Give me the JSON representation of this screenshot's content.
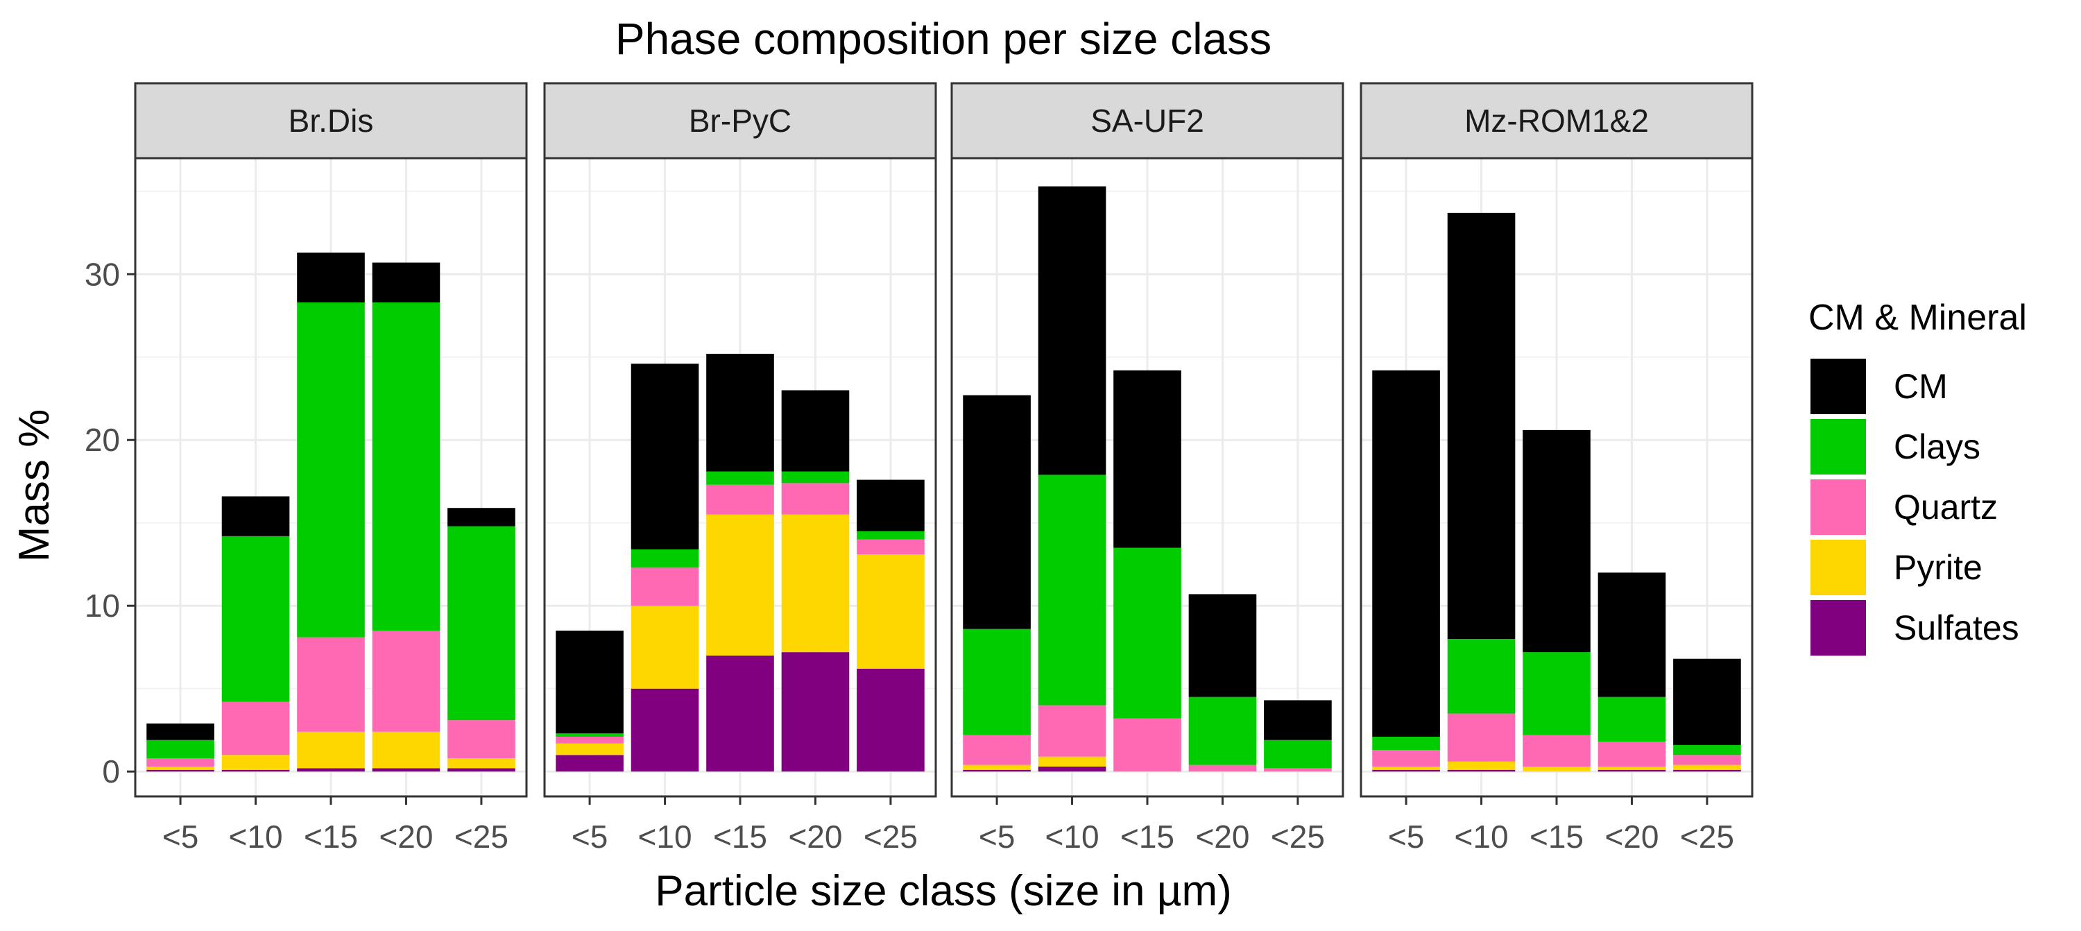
{
  "chart_data": {
    "type": "bar",
    "stacked": true,
    "title": "Phase composition per size class",
    "xlabel": "Particle size class (size in µm)",
    "ylabel": "Mass %",
    "ylim": [
      -1.5,
      37
    ],
    "yticks": [
      0,
      10,
      20,
      30
    ],
    "categories": [
      "<5",
      "<10",
      "<15",
      "<20",
      "<25"
    ],
    "legend": {
      "title": "CM & Mineral",
      "position": "right",
      "entries": [
        "CM",
        "Clays",
        "Quartz",
        "Pyrite",
        "Sulfates"
      ]
    },
    "colors": {
      "CM": "#000000",
      "Clays": "#00cc00",
      "Quartz": "#ff69b4",
      "Pyrite": "#ffd700",
      "Sulfates": "#800080",
      "strip_fill": "#d9d9d9",
      "grid_major": "#ebebeb"
    },
    "facets": [
      {
        "name": "Br.Dis",
        "series": [
          {
            "name": "Sulfates",
            "values": [
              0.1,
              0.1,
              0.2,
              0.2,
              0.2
            ]
          },
          {
            "name": "Pyrite",
            "values": [
              0.2,
              0.9,
              2.2,
              2.2,
              0.6
            ]
          },
          {
            "name": "Quartz",
            "values": [
              0.5,
              3.2,
              5.7,
              6.1,
              2.3
            ]
          },
          {
            "name": "Clays",
            "values": [
              1.1,
              10.0,
              20.2,
              19.8,
              11.7
            ]
          },
          {
            "name": "CM",
            "values": [
              1.0,
              2.4,
              3.0,
              2.4,
              1.1
            ]
          }
        ]
      },
      {
        "name": "Br-PyC",
        "series": [
          {
            "name": "Sulfates",
            "values": [
              1.0,
              5.0,
              7.0,
              7.2,
              6.2
            ]
          },
          {
            "name": "Pyrite",
            "values": [
              0.7,
              5.0,
              8.5,
              8.3,
              6.9
            ]
          },
          {
            "name": "Quartz",
            "values": [
              0.4,
              2.3,
              1.8,
              1.9,
              0.9
            ]
          },
          {
            "name": "Clays",
            "values": [
              0.2,
              1.1,
              0.8,
              0.7,
              0.5
            ]
          },
          {
            "name": "CM",
            "values": [
              6.2,
              11.2,
              7.1,
              4.9,
              3.1
            ]
          }
        ]
      },
      {
        "name": "SA-UF2",
        "series": [
          {
            "name": "Sulfates",
            "values": [
              0.1,
              0.3,
              0.0,
              0.0,
              0.0
            ]
          },
          {
            "name": "Pyrite",
            "values": [
              0.3,
              0.6,
              0.0,
              0.0,
              0.0
            ]
          },
          {
            "name": "Quartz",
            "values": [
              1.8,
              3.1,
              3.2,
              0.4,
              0.2
            ]
          },
          {
            "name": "Clays",
            "values": [
              6.4,
              13.9,
              10.3,
              4.1,
              1.7
            ]
          },
          {
            "name": "CM",
            "values": [
              14.1,
              17.4,
              10.7,
              6.2,
              2.4
            ]
          }
        ]
      },
      {
        "name": "Mz-ROM1&2",
        "series": [
          {
            "name": "Sulfates",
            "values": [
              0.1,
              0.1,
              0.0,
              0.1,
              0.1
            ]
          },
          {
            "name": "Pyrite",
            "values": [
              0.2,
              0.5,
              0.3,
              0.2,
              0.3
            ]
          },
          {
            "name": "Quartz",
            "values": [
              1.0,
              2.9,
              1.9,
              1.5,
              0.6
            ]
          },
          {
            "name": "Clays",
            "values": [
              0.8,
              4.5,
              5.0,
              2.7,
              0.6
            ]
          },
          {
            "name": "CM",
            "values": [
              22.1,
              25.7,
              13.4,
              7.5,
              5.2
            ]
          }
        ]
      }
    ]
  }
}
